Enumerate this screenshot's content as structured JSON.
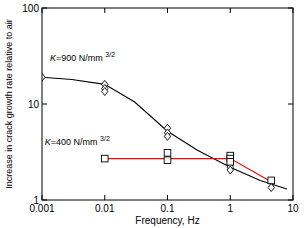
{
  "chart_data": {
    "type": "line",
    "xlabel": "Frequency, Hz",
    "ylabel": "Increase in crack growth rate relative to air",
    "log": true,
    "grid": false,
    "xlim": [
      0.001,
      10
    ],
    "ylim": [
      1,
      100
    ],
    "xticks": [
      0.001,
      0.01,
      0.1,
      1,
      10
    ],
    "yticks": [
      1,
      10,
      100
    ],
    "series": [
      {
        "name": "K=900 N/mm3/2",
        "type": "line",
        "color": "#000000",
        "line_style": "solid",
        "x": [
          0.001,
          0.003,
          0.01,
          0.03,
          0.1,
          0.3,
          1,
          3,
          8
        ],
        "values": [
          19,
          18,
          16,
          10.5,
          5.2,
          3.3,
          2.2,
          1.6,
          1.3
        ]
      },
      {
        "type": "scatter",
        "marker": "diamond",
        "color": "#000000",
        "x": [
          0.001,
          0.01,
          0.01,
          0.01,
          0.1,
          0.1,
          0.1,
          1,
          1,
          1,
          4.5
        ],
        "values": [
          19,
          16,
          14.5,
          13.5,
          5.6,
          5,
          4.6,
          2.4,
          2.2,
          2.05,
          1.35
        ]
      },
      {
        "name": "K=400 N/mm3/2",
        "type": "line",
        "color": "#ff0000",
        "line_style": "solid",
        "x": [
          0.01,
          1,
          4.5
        ],
        "values": [
          2.7,
          2.7,
          1.55
        ]
      },
      {
        "type": "scatter",
        "marker": "square",
        "color": "#000000",
        "x": [
          0.01,
          0.1,
          0.1,
          1,
          1,
          1,
          4.5
        ],
        "values": [
          2.7,
          3.1,
          2.6,
          2.9,
          2.7,
          2.5,
          1.6
        ]
      }
    ]
  }
}
